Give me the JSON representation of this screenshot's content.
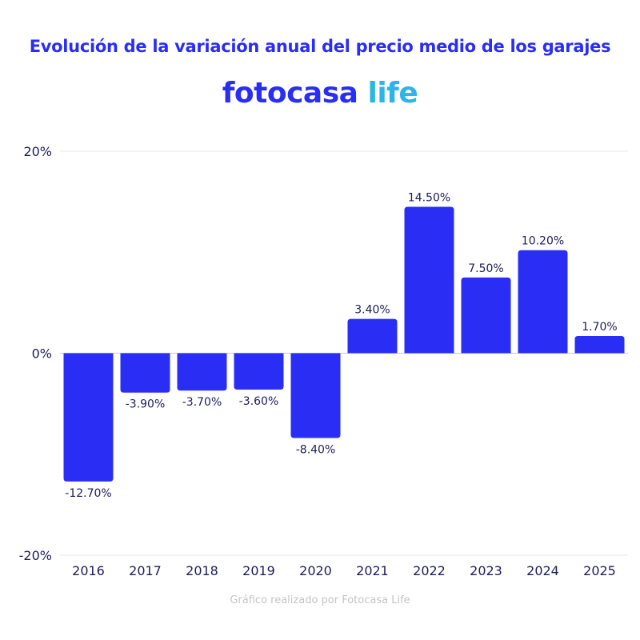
{
  "title": "Evolución de la variación anual del precio medio de los garajes",
  "logo": {
    "main": "fotocasa",
    "accent": "life"
  },
  "credit": "Gráfico realizado por Fotocasa Life",
  "colors": {
    "bar": "#2a2ef5",
    "text": "#1c1c5c",
    "title": "#2a2ef5",
    "logo_accent": "#2bb5e8"
  },
  "chart_data": {
    "type": "bar",
    "title": "Evolución de la variación anual del precio medio de los garajes",
    "categories": [
      "2016",
      "2017",
      "2018",
      "2019",
      "2020",
      "2021",
      "2022",
      "2023",
      "2024",
      "2025"
    ],
    "values": [
      -12.7,
      -3.9,
      -3.7,
      -3.6,
      -8.4,
      3.4,
      14.5,
      7.5,
      10.2,
      1.7
    ],
    "data_labels": [
      "-12.70%",
      "-3.90%",
      "-3.70%",
      "-3.60%",
      "-8.40%",
      "3.40%",
      "14.50%",
      "7.50%",
      "10.20%",
      "1.70%"
    ],
    "ylim": [
      -20,
      20
    ],
    "yticks": [
      {
        "value": 20,
        "label": "20%"
      },
      {
        "value": 0,
        "label": "0%"
      },
      {
        "value": -20,
        "label": "-20%"
      }
    ],
    "grid": true,
    "xlabel": "",
    "ylabel": ""
  }
}
